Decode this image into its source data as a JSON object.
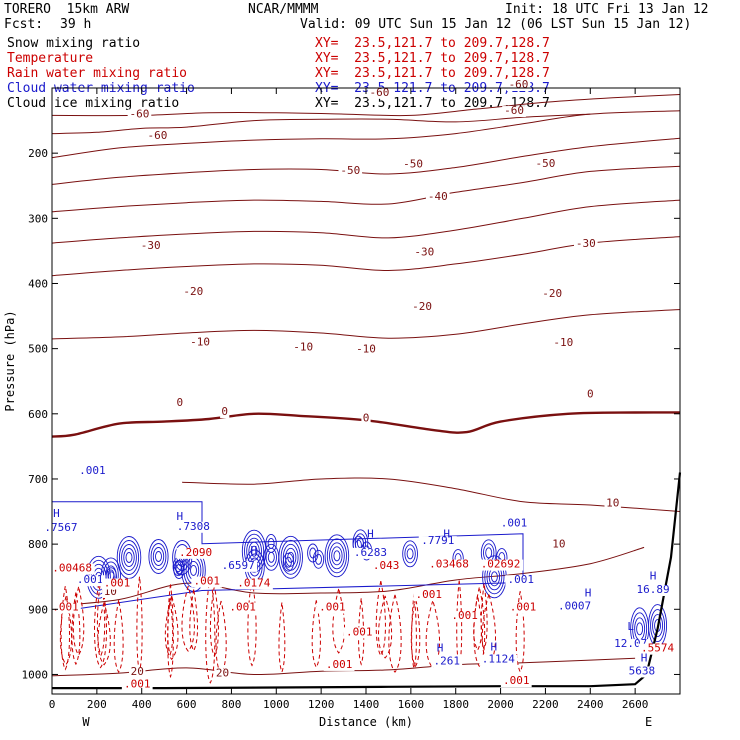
{
  "header": {
    "model": "TORERO  15km ARW",
    "center": "NCAR/MMMM",
    "init": "Init: 18 UTC Fri 13 Jan 12",
    "fcst_label": "Fcst:",
    "fcst_value": "39 h",
    "valid": "Valid: 09 UTC Sun 15 Jan 12 (06 LST Sun 15 Jan 12)"
  },
  "fields": [
    {
      "name": "Snow mixing ratio",
      "xy": "XY=  23.5,121.7 to 209.7,128.7",
      "color": "#000000"
    },
    {
      "name": "Temperature",
      "xy": "XY=  23.5,121.7 to 209.7,128.7",
      "color": "#cc0000"
    },
    {
      "name": "Rain water mixing ratio",
      "xy": "XY=  23.5,121.7 to 209.7,128.7",
      "color": "#cc0000"
    },
    {
      "name": "Cloud water mixing ratio",
      "xy": "XY=  23.5,121.7 to 209.7,128.7",
      "color": "#1a1acc"
    },
    {
      "name": "Cloud ice mixing ratio",
      "xy": "XY=  23.5,121.7 to 209.7,128.7",
      "color": "#000000"
    }
  ],
  "colors": {
    "temperature": "#7a1010",
    "freezing": "#7a1010",
    "rain": "#cc0000",
    "cloud_water": "#1a1acc",
    "terrain": "#000000"
  },
  "chart_data": {
    "type": "contour-cross-section",
    "xlabel": "Distance (km)",
    "ylabel": "Pressure (hPa)",
    "xlim": [
      0,
      2800
    ],
    "ylim": [
      1030,
      100
    ],
    "x_ticks": [
      0,
      200,
      400,
      600,
      800,
      1000,
      1200,
      1400,
      1600,
      1800,
      2000,
      2200,
      2400,
      2600
    ],
    "y_ticks": [
      200,
      300,
      400,
      500,
      600,
      700,
      800,
      900,
      1000
    ],
    "x_ends": {
      "left": "W",
      "right": "E"
    },
    "temperature_contours": [
      {
        "level": -60,
        "p": [
          [
            0,
            207
          ],
          [
            300,
            192
          ],
          [
            600,
            185
          ],
          [
            900,
            180
          ],
          [
            1200,
            178
          ],
          [
            1500,
            178
          ],
          [
            1800,
            170
          ],
          [
            2100,
            155
          ],
          [
            2400,
            140
          ],
          [
            2800,
            135
          ]
        ]
      },
      {
        "level": -60,
        "p": [
          [
            0,
            170
          ],
          [
            200,
            168
          ],
          [
            400,
            162
          ],
          [
            600,
            160
          ],
          [
            900,
            150
          ],
          [
            1200,
            148
          ],
          [
            1500,
            148
          ],
          [
            1800,
            152
          ],
          [
            2100,
            145
          ],
          [
            2400,
            140
          ]
        ]
      },
      {
        "level": -60,
        "p": [
          [
            0,
            142
          ],
          [
            400,
            142
          ],
          [
            700,
            138
          ],
          [
            1000,
            138
          ],
          [
            1300,
            140
          ],
          [
            1600,
            142
          ],
          [
            1900,
            132
          ],
          [
            2200,
            122
          ],
          [
            2500,
            115
          ],
          [
            2800,
            110
          ]
        ]
      },
      {
        "level": -50,
        "p": [
          [
            0,
            248
          ],
          [
            300,
            237
          ],
          [
            600,
            230
          ],
          [
            900,
            225
          ],
          [
            1200,
            225
          ],
          [
            1500,
            232
          ],
          [
            1800,
            222
          ],
          [
            2100,
            205
          ],
          [
            2400,
            190
          ],
          [
            2800,
            177
          ]
        ]
      },
      {
        "level": -40,
        "p": [
          [
            0,
            290
          ],
          [
            300,
            282
          ],
          [
            600,
            276
          ],
          [
            900,
            272
          ],
          [
            1200,
            274
          ],
          [
            1500,
            278
          ],
          [
            1800,
            260
          ],
          [
            2100,
            245
          ],
          [
            2400,
            228
          ],
          [
            2800,
            220
          ]
        ]
      },
      {
        "level": -30,
        "p": [
          [
            0,
            338
          ],
          [
            300,
            330
          ],
          [
            600,
            324
          ],
          [
            900,
            320
          ],
          [
            1200,
            322
          ],
          [
            1500,
            330
          ],
          [
            1800,
            318
          ],
          [
            2100,
            300
          ],
          [
            2400,
            282
          ],
          [
            2800,
            272
          ]
        ]
      },
      {
        "level": -20,
        "p": [
          [
            0,
            388
          ],
          [
            300,
            380
          ],
          [
            600,
            374
          ],
          [
            900,
            370
          ],
          [
            1200,
            372
          ],
          [
            1500,
            380
          ],
          [
            1800,
            370
          ],
          [
            2100,
            355
          ],
          [
            2400,
            338
          ],
          [
            2800,
            328
          ]
        ]
      },
      {
        "level": -10,
        "p": [
          [
            0,
            485
          ],
          [
            300,
            482
          ],
          [
            600,
            476
          ],
          [
            900,
            472
          ],
          [
            1200,
            476
          ],
          [
            1500,
            484
          ],
          [
            1800,
            478
          ],
          [
            2100,
            462
          ],
          [
            2400,
            448
          ],
          [
            2800,
            440
          ]
        ]
      },
      {
        "level": 0,
        "p": [
          [
            0,
            635
          ],
          [
            100,
            632
          ],
          [
            300,
            615
          ],
          [
            500,
            612
          ],
          [
            700,
            608
          ],
          [
            900,
            600
          ],
          [
            1100,
            603
          ],
          [
            1400,
            610
          ],
          [
            1700,
            625
          ],
          [
            1850,
            628
          ],
          [
            2000,
            612
          ],
          [
            2300,
            600
          ],
          [
            2600,
            598
          ],
          [
            2800,
            598
          ]
        ],
        "bold": true
      },
      {
        "level": 10,
        "p": [
          [
            580,
            705
          ],
          [
            900,
            708
          ],
          [
            1200,
            700
          ],
          [
            1500,
            700
          ],
          [
            1800,
            715
          ],
          [
            2100,
            735
          ],
          [
            2400,
            740
          ],
          [
            2800,
            750
          ]
        ]
      },
      {
        "level": 10,
        "p": [
          [
            0,
            895
          ],
          [
            300,
            885
          ],
          [
            600,
            860
          ],
          [
            900,
            875
          ],
          [
            1200,
            875
          ],
          [
            1500,
            872
          ],
          [
            1800,
            855
          ],
          [
            2100,
            845
          ],
          [
            2400,
            830
          ],
          [
            2640,
            805
          ]
        ]
      },
      {
        "level": 20,
        "p": [
          [
            0,
            1002
          ],
          [
            300,
            998
          ],
          [
            600,
            990
          ],
          [
            900,
            1000
          ],
          [
            1200,
            995
          ],
          [
            1500,
            993
          ],
          [
            1800,
            985
          ],
          [
            2100,
            982
          ],
          [
            2400,
            978
          ],
          [
            2600,
            975
          ]
        ]
      }
    ],
    "temperature_labels": [
      {
        "text": "-60",
        "x": 470,
        "y": 178
      },
      {
        "text": "-60",
        "x": 390,
        "y": 145
      },
      {
        "text": "-60",
        "x": 2060,
        "y": 140
      },
      {
        "text": "-60",
        "x": 1460,
        "y": 112
      },
      {
        "text": "-60",
        "x": 2080,
        "y": 100
      },
      {
        "text": "-50",
        "x": 1330,
        "y": 232
      },
      {
        "text": "-50",
        "x": 1610,
        "y": 222
      },
      {
        "text": "-50",
        "x": 2200,
        "y": 221
      },
      {
        "text": "-40",
        "x": 1720,
        "y": 272
      },
      {
        "text": "-30",
        "x": 440,
        "y": 347
      },
      {
        "text": "-30",
        "x": 1660,
        "y": 357
      },
      {
        "text": "-30",
        "x": 2380,
        "y": 344
      },
      {
        "text": "-20",
        "x": 630,
        "y": 418
      },
      {
        "text": "-20",
        "x": 1650,
        "y": 441
      },
      {
        "text": "-20",
        "x": 2230,
        "y": 421
      },
      {
        "text": "-10",
        "x": 660,
        "y": 495
      },
      {
        "text": "-10",
        "x": 1120,
        "y": 503
      },
      {
        "text": "-10",
        "x": 1400,
        "y": 506
      },
      {
        "text": "-10",
        "x": 2280,
        "y": 496
      },
      {
        "text": "0",
        "x": 570,
        "y": 588
      },
      {
        "text": "0",
        "x": 770,
        "y": 602
      },
      {
        "text": "0",
        "x": 1400,
        "y": 612
      },
      {
        "text": "0",
        "x": 2400,
        "y": 575
      },
      {
        "text": "10",
        "x": 2500,
        "y": 742
      },
      {
        "text": "10",
        "x": 2260,
        "y": 805
      },
      {
        "text": "10",
        "x": 260,
        "y": 878
      },
      {
        "text": "20",
        "x": 380,
        "y": 1001
      },
      {
        "text": "20",
        "x": 760,
        "y": 1003
      }
    ],
    "cloud_water_region": {
      "level": 0.001,
      "x": [
        0,
        2100
      ],
      "p": [
        735,
        905
      ]
    },
    "cloud_water_labels": [
      {
        "text": ".001",
        "x": 180,
        "y": 692
      },
      {
        "text": ".001",
        "x": 170,
        "y": 860
      },
      {
        "text": ".001",
        "x": 2060,
        "y": 773
      },
      {
        "text": ".001",
        "x": 2090,
        "y": 860
      },
      {
        "text": ".7567",
        "x": 40,
        "y": 780
      },
      {
        "text": ".7308",
        "x": 630,
        "y": 778
      },
      {
        "text": ".6597",
        "x": 830,
        "y": 838
      },
      {
        "text": ".6283",
        "x": 1420,
        "y": 818
      },
      {
        "text": ".7791",
        "x": 1720,
        "y": 800
      },
      {
        "text": ".0007",
        "x": 2330,
        "y": 900
      },
      {
        "text": ".261",
        "x": 1760,
        "y": 985
      },
      {
        "text": ".1124",
        "x": 1990,
        "y": 982
      },
      {
        "text": "16.89",
        "x": 2680,
        "y": 875
      },
      {
        "text": "12.07",
        "x": 2580,
        "y": 958
      },
      {
        "text": "5638",
        "x": 2630,
        "y": 1000
      }
    ],
    "highs_lows": [
      {
        "text": "H",
        "x": 20,
        "y": 758
      },
      {
        "text": "H",
        "x": 570,
        "y": 763
      },
      {
        "text": "H",
        "x": 900,
        "y": 815
      },
      {
        "text": "H",
        "x": 1420,
        "y": 790
      },
      {
        "text": "H",
        "x": 1760,
        "y": 790
      },
      {
        "text": "H",
        "x": 2390,
        "y": 880
      },
      {
        "text": "H",
        "x": 1730,
        "y": 965
      },
      {
        "text": "H",
        "x": 1970,
        "y": 963
      },
      {
        "text": "H",
        "x": 2680,
        "y": 854
      },
      {
        "text": "L",
        "x": 2580,
        "y": 932
      },
      {
        "text": "H",
        "x": 2640,
        "y": 980
      }
    ],
    "rain_labels": [
      {
        "text": ".001",
        "x": 60,
        "y": 902
      },
      {
        "text": ".001",
        "x": 290,
        "y": 865
      },
      {
        "text": ".001",
        "x": 690,
        "y": 862
      },
      {
        "text": ".001",
        "x": 850,
        "y": 902
      },
      {
        "text": ".001",
        "x": 1250,
        "y": 902
      },
      {
        "text": ".001",
        "x": 1370,
        "y": 940
      },
      {
        "text": ".001",
        "x": 1680,
        "y": 883
      },
      {
        "text": ".001",
        "x": 1840,
        "y": 915
      },
      {
        "text": ".001",
        "x": 2100,
        "y": 902
      },
      {
        "text": ".001",
        "x": 1280,
        "y": 990
      },
      {
        "text": ".001",
        "x": 380,
        "y": 1020
      },
      {
        "text": ".001",
        "x": 2070,
        "y": 1015
      },
      {
        "text": ".00468",
        "x": 90,
        "y": 842
      },
      {
        "text": ".0174",
        "x": 900,
        "y": 865
      },
      {
        "text": ".043",
        "x": 1490,
        "y": 838
      },
      {
        "text": ".03468",
        "x": 1770,
        "y": 836
      },
      {
        "text": ".02692",
        "x": 2000,
        "y": 836
      },
      {
        "text": ".2090",
        "x": 640,
        "y": 818
      },
      {
        "text": ".5574",
        "x": 2700,
        "y": 965
      }
    ],
    "terrain": [
      [
        0,
        1021
      ],
      [
        500,
        1021
      ],
      [
        1000,
        1020
      ],
      [
        1500,
        1019
      ],
      [
        2000,
        1018
      ],
      [
        2400,
        1018
      ],
      [
        2600,
        1015
      ],
      [
        2650,
        1000
      ],
      [
        2700,
        930
      ],
      [
        2760,
        820
      ],
      [
        2800,
        690
      ]
    ]
  }
}
